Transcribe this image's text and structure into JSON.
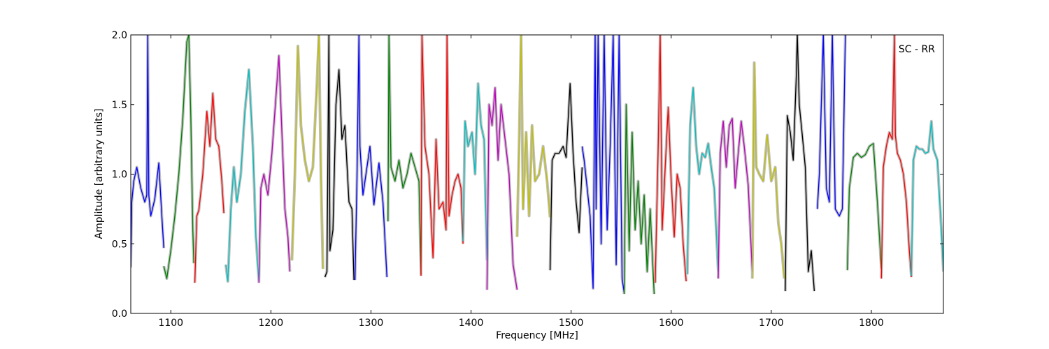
{
  "chart_data": {
    "type": "line",
    "title": "",
    "xlabel": "Frequency [MHz]",
    "ylabel": "Amplitude [arbitrary units]",
    "xlim": [
      1060,
      1872
    ],
    "ylim": [
      0.0,
      2.0
    ],
    "xticks": [
      "1100",
      "1200",
      "1300",
      "1400",
      "1500",
      "1600",
      "1700",
      "1800"
    ],
    "yticks": [
      "0.0",
      "0.5",
      "1.0",
      "1.5",
      "2.0"
    ],
    "grid": false,
    "legend": "none",
    "annotation": "SC - RR",
    "background_color": "#c0c0c0",
    "series": [
      {
        "color": "#0000ff",
        "x": [
          1060,
          1061,
          1063,
          1066,
          1070,
          1074,
          1076,
          1077,
          1078,
          1080,
          1084,
          1088,
          1091,
          1093
        ],
        "y": [
          0.33,
          0.8,
          0.95,
          1.05,
          0.9,
          0.8,
          0.85,
          2.0,
          0.85,
          0.7,
          0.82,
          1.08,
          0.7,
          0.47
        ]
      },
      {
        "color": "#008000",
        "x": [
          1093,
          1096,
          1100,
          1104,
          1108,
          1112,
          1116,
          1118,
          1120,
          1122,
          1123
        ],
        "y": [
          0.34,
          0.25,
          0.45,
          0.7,
          1.0,
          1.4,
          1.95,
          2.0,
          1.4,
          0.6,
          0.36
        ]
      },
      {
        "color": "#ff0000",
        "x": [
          1124,
          1126,
          1128,
          1132,
          1136,
          1139,
          1142,
          1145,
          1148,
          1151,
          1153
        ],
        "y": [
          0.22,
          0.7,
          0.74,
          1.0,
          1.45,
          1.2,
          1.58,
          1.25,
          1.2,
          0.95,
          0.72
        ]
      },
      {
        "color": "#00bfbf",
        "x": [
          1155,
          1157,
          1160,
          1163,
          1166,
          1170,
          1174,
          1178,
          1182,
          1185,
          1188
        ],
        "y": [
          0.35,
          0.23,
          0.75,
          1.05,
          0.8,
          1.0,
          1.45,
          1.75,
          1.2,
          0.55,
          0.23
        ]
      },
      {
        "color": "#bf00bf",
        "x": [
          1188,
          1190,
          1193,
          1197,
          1201,
          1205,
          1208,
          1211,
          1214,
          1217,
          1219
        ],
        "y": [
          0.22,
          0.9,
          1.0,
          0.85,
          1.15,
          1.55,
          1.85,
          1.3,
          0.75,
          0.55,
          0.3
        ]
      },
      {
        "color": "#bfbf00",
        "x": [
          1221,
          1224,
          1227,
          1230,
          1234,
          1238,
          1242,
          1246,
          1248,
          1250,
          1252
        ],
        "y": [
          0.38,
          1.0,
          1.92,
          1.35,
          1.1,
          0.95,
          1.05,
          1.65,
          2.0,
          1.0,
          0.32
        ]
      },
      {
        "color": "#000000",
        "x": [
          1254,
          1256,
          1258,
          1259,
          1262,
          1265,
          1268,
          1271,
          1274,
          1278,
          1281,
          1283
        ],
        "y": [
          0.26,
          0.3,
          2.0,
          0.45,
          0.6,
          1.5,
          1.75,
          1.25,
          1.35,
          0.8,
          0.75,
          0.24
        ]
      },
      {
        "color": "#0000ff",
        "x": [
          1284,
          1286,
          1288,
          1289,
          1292,
          1295,
          1299,
          1303,
          1308,
          1312,
          1316
        ],
        "y": [
          0.24,
          0.95,
          2.0,
          1.2,
          0.85,
          1.0,
          1.2,
          0.78,
          1.08,
          0.8,
          0.26
        ]
      },
      {
        "color": "#008000",
        "x": [
          1317,
          1318,
          1320,
          1324,
          1328,
          1332,
          1336,
          1340,
          1344,
          1348,
          1350
        ],
        "y": [
          0.66,
          2.0,
          1.05,
          0.95,
          1.1,
          0.9,
          1.0,
          1.15,
          1.05,
          0.95,
          0.28
        ]
      },
      {
        "color": "#ff0000",
        "x": [
          1350,
          1351,
          1354,
          1358,
          1362,
          1365,
          1368,
          1372,
          1375,
          1376,
          1378,
          1381,
          1384,
          1387,
          1390,
          1392
        ],
        "y": [
          0.27,
          2.0,
          1.2,
          1.0,
          0.4,
          1.25,
          0.75,
          0.8,
          0.6,
          2.0,
          0.7,
          0.85,
          0.95,
          1.0,
          0.9,
          0.5
        ]
      },
      {
        "color": "#00bfbf",
        "x": [
          1392,
          1394,
          1397,
          1401,
          1404,
          1407,
          1410,
          1413,
          1416
        ],
        "y": [
          0.52,
          1.38,
          1.2,
          1.3,
          1.0,
          1.65,
          1.35,
          1.25,
          0.38
        ]
      },
      {
        "color": "#bf00bf",
        "x": [
          1416,
          1418,
          1421,
          1424,
          1427,
          1430,
          1434,
          1438,
          1442,
          1446
        ],
        "y": [
          0.17,
          1.5,
          1.35,
          1.62,
          1.1,
          1.5,
          1.25,
          1.0,
          0.35,
          0.17
        ]
      },
      {
        "color": "#bfbf00",
        "x": [
          1446,
          1448,
          1450,
          1452,
          1455,
          1458,
          1461,
          1464,
          1468,
          1472,
          1476,
          1479
        ],
        "y": [
          0.55,
          1.2,
          2.0,
          0.75,
          1.3,
          0.7,
          1.35,
          0.95,
          1.0,
          1.2,
          0.95,
          0.69
        ]
      },
      {
        "color": "#000000",
        "x": [
          1479,
          1481,
          1484,
          1488,
          1492,
          1495,
          1499,
          1502,
          1505,
          1508,
          1511
        ],
        "y": [
          0.31,
          1.1,
          1.15,
          1.15,
          1.2,
          1.12,
          1.65,
          1.15,
          0.8,
          0.58,
          1.05
        ]
      },
      {
        "color": "#0000ff",
        "x": [
          1511,
          1513,
          1516,
          1519,
          1522,
          1524,
          1525,
          1527,
          1530,
          1533,
          1536,
          1539,
          1542,
          1545,
          1548,
          1551,
          1553
        ],
        "y": [
          1.2,
          1.1,
          0.9,
          0.7,
          0.18,
          2.0,
          0.75,
          2.0,
          0.5,
          2.0,
          0.6,
          1.2,
          2.0,
          0.35,
          2.0,
          0.25,
          0.15
        ]
      },
      {
        "color": "#008000",
        "x": [
          1553,
          1555,
          1558,
          1561,
          1564,
          1567,
          1570,
          1573,
          1576,
          1579,
          1583
        ],
        "y": [
          0.14,
          1.5,
          0.45,
          1.3,
          0.6,
          0.95,
          0.5,
          0.85,
          0.3,
          0.75,
          0.14
        ]
      },
      {
        "color": "#ff0000",
        "x": [
          1584,
          1587,
          1589,
          1591,
          1594,
          1597,
          1600,
          1603,
          1606,
          1609,
          1612,
          1615
        ],
        "y": [
          0.22,
          1.2,
          2.0,
          0.6,
          1.05,
          1.48,
          0.95,
          0.55,
          1.0,
          0.9,
          0.5,
          0.23
        ]
      },
      {
        "color": "#00bfbf",
        "x": [
          1616,
          1619,
          1622,
          1625,
          1628,
          1631,
          1634,
          1637,
          1640,
          1643,
          1647
        ],
        "y": [
          0.28,
          1.35,
          1.62,
          1.2,
          1.0,
          1.15,
          1.12,
          1.22,
          1.05,
          0.9,
          0.3
        ]
      },
      {
        "color": "#bf00bf",
        "x": [
          1647,
          1649,
          1652,
          1655,
          1658,
          1661,
          1664,
          1667,
          1670,
          1673,
          1677,
          1681
        ],
        "y": [
          0.25,
          1.15,
          1.38,
          1.05,
          1.35,
          1.4,
          0.9,
          1.15,
          1.38,
          1.2,
          0.92,
          0.3
        ]
      },
      {
        "color": "#bfbf00",
        "x": [
          1681,
          1683,
          1685,
          1688,
          1692,
          1696,
          1700,
          1704,
          1707,
          1710,
          1713
        ],
        "y": [
          0.25,
          1.8,
          1.05,
          1.0,
          0.95,
          1.28,
          0.95,
          1.05,
          0.65,
          0.5,
          0.25
        ]
      },
      {
        "color": "#000000",
        "x": [
          1714,
          1716,
          1719,
          1722,
          1725,
          1726,
          1728,
          1731,
          1734,
          1737,
          1740,
          1743
        ],
        "y": [
          0.16,
          1.42,
          1.3,
          1.1,
          1.7,
          2.0,
          1.5,
          1.28,
          1.05,
          0.3,
          0.45,
          0.16
        ]
      },
      {
        "color": "#0000ff",
        "x": [
          1746,
          1748,
          1750,
          1752,
          1755,
          1758,
          1761,
          1764,
          1768,
          1771,
          1774
        ],
        "y": [
          0.75,
          1.0,
          1.5,
          2.0,
          0.9,
          0.8,
          2.0,
          0.75,
          0.7,
          0.75,
          2.0
        ]
      },
      {
        "color": "#008000",
        "x": [
          1776,
          1778,
          1782,
          1786,
          1790,
          1794,
          1798,
          1802,
          1806,
          1810
        ],
        "y": [
          0.31,
          0.9,
          1.12,
          1.15,
          1.12,
          1.14,
          1.2,
          1.22,
          0.8,
          0.32
        ]
      },
      {
        "color": "#ff0000",
        "x": [
          1810,
          1812,
          1815,
          1818,
          1821,
          1823,
          1824,
          1826,
          1829,
          1832,
          1835,
          1838,
          1840
        ],
        "y": [
          0.25,
          1.05,
          1.2,
          1.3,
          1.25,
          2.0,
          1.28,
          1.15,
          1.1,
          1.0,
          0.8,
          0.45,
          0.26
        ]
      },
      {
        "color": "#00bfbf",
        "x": [
          1840,
          1842,
          1845,
          1848,
          1851,
          1854,
          1857,
          1860,
          1862,
          1866,
          1870,
          1872
        ],
        "y": [
          0.27,
          1.1,
          1.2,
          1.18,
          1.18,
          1.15,
          1.16,
          1.38,
          1.18,
          1.1,
          0.6,
          0.3
        ]
      }
    ]
  }
}
